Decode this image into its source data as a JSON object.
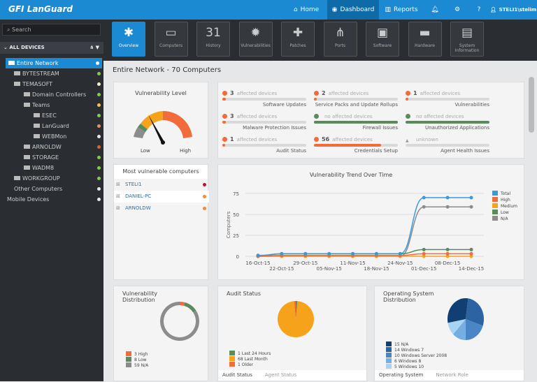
{
  "app": {
    "logo": "GFI LanGuard"
  },
  "topnav": [
    {
      "label": "Home",
      "icon": "home-icon"
    },
    {
      "label": "Dashboard",
      "icon": "dashboard-icon",
      "active": true
    },
    {
      "label": "Reports",
      "icon": "bar-chart-icon"
    }
  ],
  "user": "STELI1\\stelim",
  "sidebar": {
    "search_placeholder": "Search",
    "section": "ALL DEVICES",
    "items": [
      {
        "label": "Entire Network",
        "status": "#ffffff"
      },
      {
        "label": "BYTESTREAM",
        "status": "#7dd23a"
      },
      {
        "label": "TEMASOFT",
        "status": "#f3f0c8"
      },
      {
        "label": "Domain Controllers",
        "status": "#7dd23a"
      },
      {
        "label": "Teams",
        "status": "#f2c14e"
      },
      {
        "label": "ESEC",
        "status": "#7dd23a"
      },
      {
        "label": "LanGuard",
        "status": "#e9915e"
      },
      {
        "label": "WEBMon",
        "status": "#e6e6e6"
      },
      {
        "label": "ARNOLDW",
        "status": "#e0622f"
      },
      {
        "label": "STORAGE",
        "status": "#7dd23a"
      },
      {
        "label": "WADM8",
        "status": "#7dd23a"
      },
      {
        "label": "WORKGROUP",
        "status": "#7dd23a"
      },
      {
        "label": "Other Computers",
        "status": "#e6e6e6"
      },
      {
        "label": "Mobile Devices",
        "status": "#e6e6e6"
      }
    ]
  },
  "toolbar": [
    {
      "label": "Overview",
      "active": true
    },
    {
      "label": "Computers"
    },
    {
      "label": "History"
    },
    {
      "label": "Vulnerabilities"
    },
    {
      "label": "Patches"
    },
    {
      "label": "Ports"
    },
    {
      "label": "Software"
    },
    {
      "label": "Hardware"
    },
    {
      "label": "System Information"
    }
  ],
  "page_title": "Entire Network - 70 Computers",
  "gauge": {
    "title": "Vulnerability Level",
    "low": "Low",
    "high": "High"
  },
  "status": [
    {
      "count": "3",
      "text": "affected devices",
      "label": "Software Updates",
      "state": "bad",
      "fill": 0.04
    },
    {
      "count": "2",
      "text": "affected devices",
      "label": "Service Packs and Update Rollups",
      "state": "bad",
      "fill": 0.03
    },
    {
      "count": "1",
      "text": "affected devices",
      "label": "Vulnerabilities",
      "state": "bad",
      "fill": 0.015
    },
    {
      "count": "3",
      "text": "affected devices",
      "label": "Malware Protection Issues",
      "state": "bad",
      "fill": 0.04
    },
    {
      "count": "",
      "text": "no affected devices",
      "label": "Firewall Issues",
      "state": "ok",
      "fill": 1
    },
    {
      "count": "",
      "text": "no affected devices",
      "label": "Unauthorized Applications",
      "state": "ok",
      "fill": 1
    },
    {
      "count": "1",
      "text": "affected devices",
      "label": "Audit Status",
      "state": "bad",
      "fill": 0.015
    },
    {
      "count": "56",
      "text": "affected devices",
      "label": "Credentials Setup",
      "state": "bad",
      "fill": 0.8
    },
    {
      "count": "",
      "text": "unknown",
      "label": "Agent Health Issues",
      "state": "unknown",
      "fill": 0
    }
  ],
  "most_vulnerable": {
    "title": "Most vulnerable computers",
    "items": [
      {
        "name": "STELI1",
        "color": "#b0173a"
      },
      {
        "name": "DANIEL-PC",
        "color": "#f08a3c"
      },
      {
        "name": "ARNOLDW",
        "color": "#f08a3c"
      }
    ]
  },
  "chart_data": [
    {
      "type": "line",
      "title": "Vulnerability Trend Over Time",
      "ylabel": "Computers",
      "ylim": [
        0,
        75
      ],
      "yticks": [
        0,
        25,
        50,
        75
      ],
      "x": [
        "16-Oct-15",
        "22-Oct-15",
        "29-Oct-15",
        "05-Nov-15",
        "11-Nov-15",
        "18-Nov-15",
        "24-Nov-15",
        "01-Dec-15",
        "08-Dec-15",
        "14-Dec-15"
      ],
      "series": [
        {
          "name": "Total",
          "color": "#3a9ad9",
          "values": [
            1,
            3,
            3,
            3,
            3,
            3,
            3,
            70,
            70,
            70
          ]
        },
        {
          "name": "High",
          "color": "#f26b3a",
          "values": [
            0,
            1,
            1,
            1,
            1,
            1,
            1,
            3,
            3,
            3
          ]
        },
        {
          "name": "Medium",
          "color": "#f7a21b",
          "values": [
            1,
            0,
            0,
            0,
            0,
            0,
            0,
            0,
            0,
            0
          ]
        },
        {
          "name": "Low",
          "color": "#5b8a5f",
          "values": [
            0,
            3,
            3,
            3,
            3,
            3,
            3,
            8,
            8,
            8
          ]
        },
        {
          "name": "N/A",
          "color": "#8c8c8c",
          "values": [
            0,
            0,
            0,
            0,
            0,
            0,
            0,
            59,
            59,
            59
          ]
        }
      ],
      "legend": "right",
      "grid": true
    },
    {
      "type": "pie",
      "title": "Vulnerability Distribution",
      "donut": true,
      "slices": [
        {
          "label": "High",
          "value": 3,
          "color": "#f26b3a"
        },
        {
          "label": "Low",
          "value": 8,
          "color": "#5b8a5f"
        },
        {
          "label": "N/A",
          "value": 59,
          "color": "#8c8c8c"
        }
      ]
    },
    {
      "type": "pie",
      "title": "Audit Status",
      "slices": [
        {
          "label": "Last 24 Hours",
          "value": 1,
          "color": "#5b8a5f"
        },
        {
          "label": "Last Month",
          "value": 68,
          "color": "#f7a21b"
        },
        {
          "label": "Older",
          "value": 1,
          "color": "#f26b3a"
        }
      ]
    },
    {
      "type": "pie",
      "title": "Operating System Distribution",
      "slices": [
        {
          "label": "N/A",
          "value": 15,
          "color": "#0f3f73"
        },
        {
          "label": "Windows 7",
          "value": 14,
          "color": "#2b64a0"
        },
        {
          "label": "Windows Server 2008",
          "value": 10,
          "color": "#4a86c5"
        },
        {
          "label": "Windows 8",
          "value": 6,
          "color": "#74aee3"
        },
        {
          "label": "Windows 10",
          "value": 5,
          "color": "#a9d3f5"
        }
      ]
    }
  ],
  "audit_tabs": [
    "Audit Status",
    "Agent Status"
  ],
  "os_tabs": [
    "Operating System",
    "Network Role"
  ]
}
